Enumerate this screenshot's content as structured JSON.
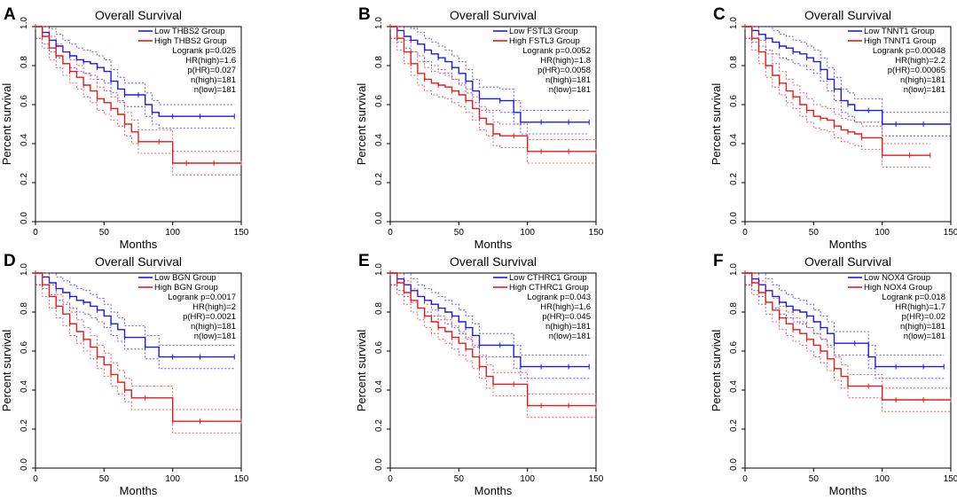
{
  "colors": {
    "low": "#1a1ae6",
    "high": "#e61a1a",
    "axis": "#000000"
  },
  "chart_data": [
    {
      "type": "line",
      "panel": "A",
      "title": "Overall Survival",
      "xlabel": "Months",
      "ylabel": "Percent survival",
      "xlim": [
        0,
        150
      ],
      "ylim": [
        0,
        1
      ],
      "xticks": [
        "0",
        "50",
        "100",
        "150"
      ],
      "yticks": [
        "0.0",
        "0.2",
        "0.4",
        "0.6",
        "0.8",
        "1.0"
      ],
      "legend": [
        "Low THBS2 Group",
        "High THBS2 Group"
      ],
      "stats": [
        "Logrank p=0.025",
        "HR(high)=1.6",
        "p(HR)=0.027",
        "n(high)=181",
        "n(low)=181"
      ],
      "series": [
        {
          "name": "Low THBS2 Group",
          "x": [
            0,
            5,
            10,
            15,
            20,
            25,
            30,
            35,
            40,
            45,
            50,
            55,
            60,
            65,
            70,
            75,
            80,
            85,
            90,
            100,
            110,
            120,
            130,
            145
          ],
          "y": [
            1.0,
            0.97,
            0.93,
            0.9,
            0.87,
            0.85,
            0.83,
            0.82,
            0.81,
            0.79,
            0.77,
            0.72,
            0.68,
            0.65,
            0.65,
            0.65,
            0.6,
            0.56,
            0.54,
            0.54,
            0.54,
            0.54,
            0.54,
            0.54
          ]
        },
        {
          "name": "High THBS2 Group",
          "x": [
            0,
            5,
            10,
            15,
            20,
            25,
            30,
            35,
            40,
            45,
            50,
            55,
            60,
            65,
            70,
            75,
            80,
            90,
            100,
            110,
            120,
            130,
            150
          ],
          "y": [
            1.0,
            0.95,
            0.89,
            0.85,
            0.81,
            0.77,
            0.74,
            0.7,
            0.67,
            0.63,
            0.61,
            0.58,
            0.55,
            0.5,
            0.46,
            0.41,
            0.41,
            0.41,
            0.3,
            0.3,
            0.3,
            0.3,
            0.3
          ]
        }
      ]
    },
    {
      "type": "line",
      "panel": "B",
      "title": "Overall Survival",
      "xlabel": "Months",
      "ylabel": "Percent survival",
      "xlim": [
        0,
        150
      ],
      "ylim": [
        0,
        1
      ],
      "xticks": [
        "0",
        "50",
        "100",
        "150"
      ],
      "yticks": [
        "0.0",
        "0.2",
        "0.4",
        "0.6",
        "0.8",
        "1.0"
      ],
      "legend": [
        "Low FSTL3 Group",
        "High FSTL3 Group"
      ],
      "stats": [
        "Logrank p=0.0052",
        "HR(high)=1.8",
        "p(HR)=0.0058",
        "n(high)=181",
        "n(low)=181"
      ],
      "series": [
        {
          "name": "Low FSTL3 Group",
          "x": [
            0,
            5,
            10,
            15,
            20,
            25,
            30,
            35,
            40,
            45,
            50,
            55,
            60,
            65,
            70,
            80,
            90,
            95,
            100,
            110,
            120,
            130,
            145
          ],
          "y": [
            1.0,
            0.98,
            0.95,
            0.93,
            0.91,
            0.88,
            0.86,
            0.84,
            0.82,
            0.79,
            0.76,
            0.72,
            0.67,
            0.63,
            0.63,
            0.62,
            0.56,
            0.51,
            0.51,
            0.51,
            0.51,
            0.51,
            0.51
          ]
        },
        {
          "name": "High FSTL3 Group",
          "x": [
            0,
            5,
            10,
            15,
            20,
            25,
            30,
            35,
            40,
            45,
            50,
            55,
            60,
            65,
            70,
            75,
            80,
            90,
            100,
            110,
            120,
            130,
            150
          ],
          "y": [
            1.0,
            0.94,
            0.87,
            0.81,
            0.76,
            0.73,
            0.71,
            0.7,
            0.69,
            0.67,
            0.65,
            0.62,
            0.58,
            0.53,
            0.5,
            0.45,
            0.44,
            0.44,
            0.36,
            0.36,
            0.36,
            0.36,
            0.36
          ]
        }
      ]
    },
    {
      "type": "line",
      "panel": "C",
      "title": "Overall Survival",
      "xlabel": "Months",
      "ylabel": "Percent survival",
      "xlim": [
        0,
        150
      ],
      "ylim": [
        0,
        1
      ],
      "xticks": [
        "0",
        "50",
        "100",
        "150"
      ],
      "yticks": [
        "0.0",
        "0.2",
        "0.4",
        "0.6",
        "0.8",
        "1.0"
      ],
      "legend": [
        "Low TNNT1 Group",
        "High TNNT1 Group"
      ],
      "stats": [
        "Logrank p=0.00048",
        "HR(high)=2.2",
        "p(HR)=0.00065",
        "n(high)=181",
        "n(low)=181"
      ],
      "series": [
        {
          "name": "Low TNNT1 Group",
          "x": [
            0,
            5,
            10,
            15,
            20,
            25,
            30,
            35,
            40,
            45,
            50,
            55,
            60,
            65,
            70,
            75,
            80,
            90,
            100,
            110,
            120,
            130,
            150
          ],
          "y": [
            1.0,
            0.98,
            0.96,
            0.94,
            0.92,
            0.9,
            0.89,
            0.87,
            0.86,
            0.84,
            0.82,
            0.78,
            0.73,
            0.68,
            0.62,
            0.6,
            0.57,
            0.57,
            0.5,
            0.5,
            0.5,
            0.5,
            0.5
          ]
        },
        {
          "name": "High TNNT1 Group",
          "x": [
            0,
            5,
            10,
            15,
            20,
            25,
            30,
            35,
            40,
            45,
            50,
            55,
            60,
            65,
            70,
            75,
            80,
            85,
            90,
            100,
            110,
            120,
            135
          ],
          "y": [
            1.0,
            0.94,
            0.87,
            0.8,
            0.75,
            0.71,
            0.67,
            0.64,
            0.6,
            0.57,
            0.54,
            0.53,
            0.52,
            0.49,
            0.47,
            0.46,
            0.45,
            0.43,
            0.43,
            0.34,
            0.34,
            0.34,
            0.34
          ]
        }
      ]
    },
    {
      "type": "line",
      "panel": "D",
      "title": "Overall Survival",
      "xlabel": "Months",
      "ylabel": "Percent survival",
      "xlim": [
        0,
        150
      ],
      "ylim": [
        0,
        1
      ],
      "xticks": [
        "0",
        "50",
        "100",
        "150"
      ],
      "yticks": [
        "0.0",
        "0.2",
        "0.4",
        "0.6",
        "0.8",
        "1.0"
      ],
      "legend": [
        "Low BGN Group",
        "High BGN Group"
      ],
      "stats": [
        "Logrank p=0.0017",
        "HR(high)=2",
        "p(HR)=0.0021",
        "n(high)=181",
        "n(low)=181"
      ],
      "series": [
        {
          "name": "Low BGN Group",
          "x": [
            0,
            5,
            10,
            15,
            20,
            25,
            30,
            35,
            40,
            45,
            50,
            55,
            60,
            65,
            70,
            80,
            90,
            100,
            110,
            120,
            130,
            145
          ],
          "y": [
            1.0,
            0.98,
            0.95,
            0.92,
            0.9,
            0.88,
            0.86,
            0.85,
            0.83,
            0.81,
            0.78,
            0.74,
            0.71,
            0.67,
            0.67,
            0.62,
            0.57,
            0.57,
            0.57,
            0.57,
            0.57,
            0.57
          ]
        },
        {
          "name": "High BGN Group",
          "x": [
            0,
            5,
            10,
            15,
            20,
            25,
            30,
            35,
            40,
            45,
            50,
            55,
            60,
            65,
            70,
            80,
            90,
            100,
            110,
            120,
            130,
            150
          ],
          "y": [
            1.0,
            0.94,
            0.88,
            0.83,
            0.79,
            0.74,
            0.7,
            0.66,
            0.62,
            0.57,
            0.53,
            0.48,
            0.44,
            0.4,
            0.36,
            0.36,
            0.36,
            0.24,
            0.24,
            0.24,
            0.24,
            0.24
          ]
        }
      ]
    },
    {
      "type": "line",
      "panel": "E",
      "title": "Overall Survival",
      "xlabel": "Months",
      "ylabel": "Percent survival",
      "xlim": [
        0,
        150
      ],
      "ylim": [
        0,
        1
      ],
      "xticks": [
        "0",
        "50",
        "100",
        "150"
      ],
      "yticks": [
        "0.0",
        "0.2",
        "0.4",
        "0.6",
        "0.8",
        "1.0"
      ],
      "legend": [
        "Low CTHRC1 Group",
        "High CTHRC1 Group"
      ],
      "stats": [
        "Logrank p=0.043",
        "HR(high)=1.6",
        "p(HR)=0.045",
        "n(high)=181",
        "n(low)=181"
      ],
      "series": [
        {
          "name": "Low CTHRC1 Group",
          "x": [
            0,
            5,
            10,
            15,
            20,
            25,
            30,
            35,
            40,
            45,
            50,
            55,
            60,
            65,
            70,
            80,
            90,
            95,
            100,
            110,
            120,
            130,
            145
          ],
          "y": [
            1.0,
            0.97,
            0.94,
            0.91,
            0.88,
            0.86,
            0.84,
            0.82,
            0.8,
            0.78,
            0.75,
            0.72,
            0.68,
            0.63,
            0.63,
            0.63,
            0.57,
            0.52,
            0.52,
            0.52,
            0.52,
            0.52,
            0.52
          ]
        },
        {
          "name": "High CTHRC1 Group",
          "x": [
            0,
            5,
            10,
            15,
            20,
            25,
            30,
            35,
            40,
            45,
            50,
            55,
            60,
            65,
            70,
            75,
            80,
            90,
            100,
            110,
            120,
            130,
            150
          ],
          "y": [
            1.0,
            0.95,
            0.9,
            0.86,
            0.82,
            0.78,
            0.75,
            0.72,
            0.7,
            0.67,
            0.64,
            0.61,
            0.57,
            0.52,
            0.47,
            0.43,
            0.43,
            0.43,
            0.32,
            0.32,
            0.32,
            0.32,
            0.32
          ]
        }
      ]
    },
    {
      "type": "line",
      "panel": "F",
      "title": "Overall Survival",
      "xlabel": "Months",
      "ylabel": "Percent survival",
      "xlim": [
        0,
        150
      ],
      "ylim": [
        0,
        1
      ],
      "xticks": [
        "0",
        "50",
        "100",
        "150"
      ],
      "yticks": [
        "0.0",
        "0.2",
        "0.4",
        "0.6",
        "0.8",
        "1.0"
      ],
      "legend": [
        "Low NOX4 Group",
        "High NOX4 Group"
      ],
      "stats": [
        "Logrank p=0.018",
        "HR(high)=1.7",
        "p(HR)=0.02",
        "n(high)=181",
        "n(low)=181"
      ],
      "series": [
        {
          "name": "Low NOX4 Group",
          "x": [
            0,
            5,
            10,
            15,
            20,
            25,
            30,
            35,
            40,
            45,
            50,
            55,
            60,
            65,
            70,
            80,
            90,
            95,
            100,
            110,
            120,
            130,
            145
          ],
          "y": [
            1.0,
            0.97,
            0.94,
            0.91,
            0.88,
            0.85,
            0.83,
            0.81,
            0.8,
            0.78,
            0.75,
            0.72,
            0.69,
            0.64,
            0.64,
            0.64,
            0.57,
            0.52,
            0.52,
            0.52,
            0.52,
            0.52,
            0.52
          ]
        },
        {
          "name": "High NOX4 Group",
          "x": [
            0,
            5,
            10,
            15,
            20,
            25,
            30,
            35,
            40,
            45,
            50,
            55,
            60,
            65,
            70,
            75,
            80,
            90,
            100,
            110,
            120,
            130,
            150
          ],
          "y": [
            1.0,
            0.95,
            0.9,
            0.85,
            0.81,
            0.77,
            0.74,
            0.71,
            0.69,
            0.66,
            0.63,
            0.6,
            0.56,
            0.51,
            0.47,
            0.42,
            0.42,
            0.42,
            0.35,
            0.35,
            0.35,
            0.35,
            0.35
          ]
        }
      ]
    }
  ]
}
